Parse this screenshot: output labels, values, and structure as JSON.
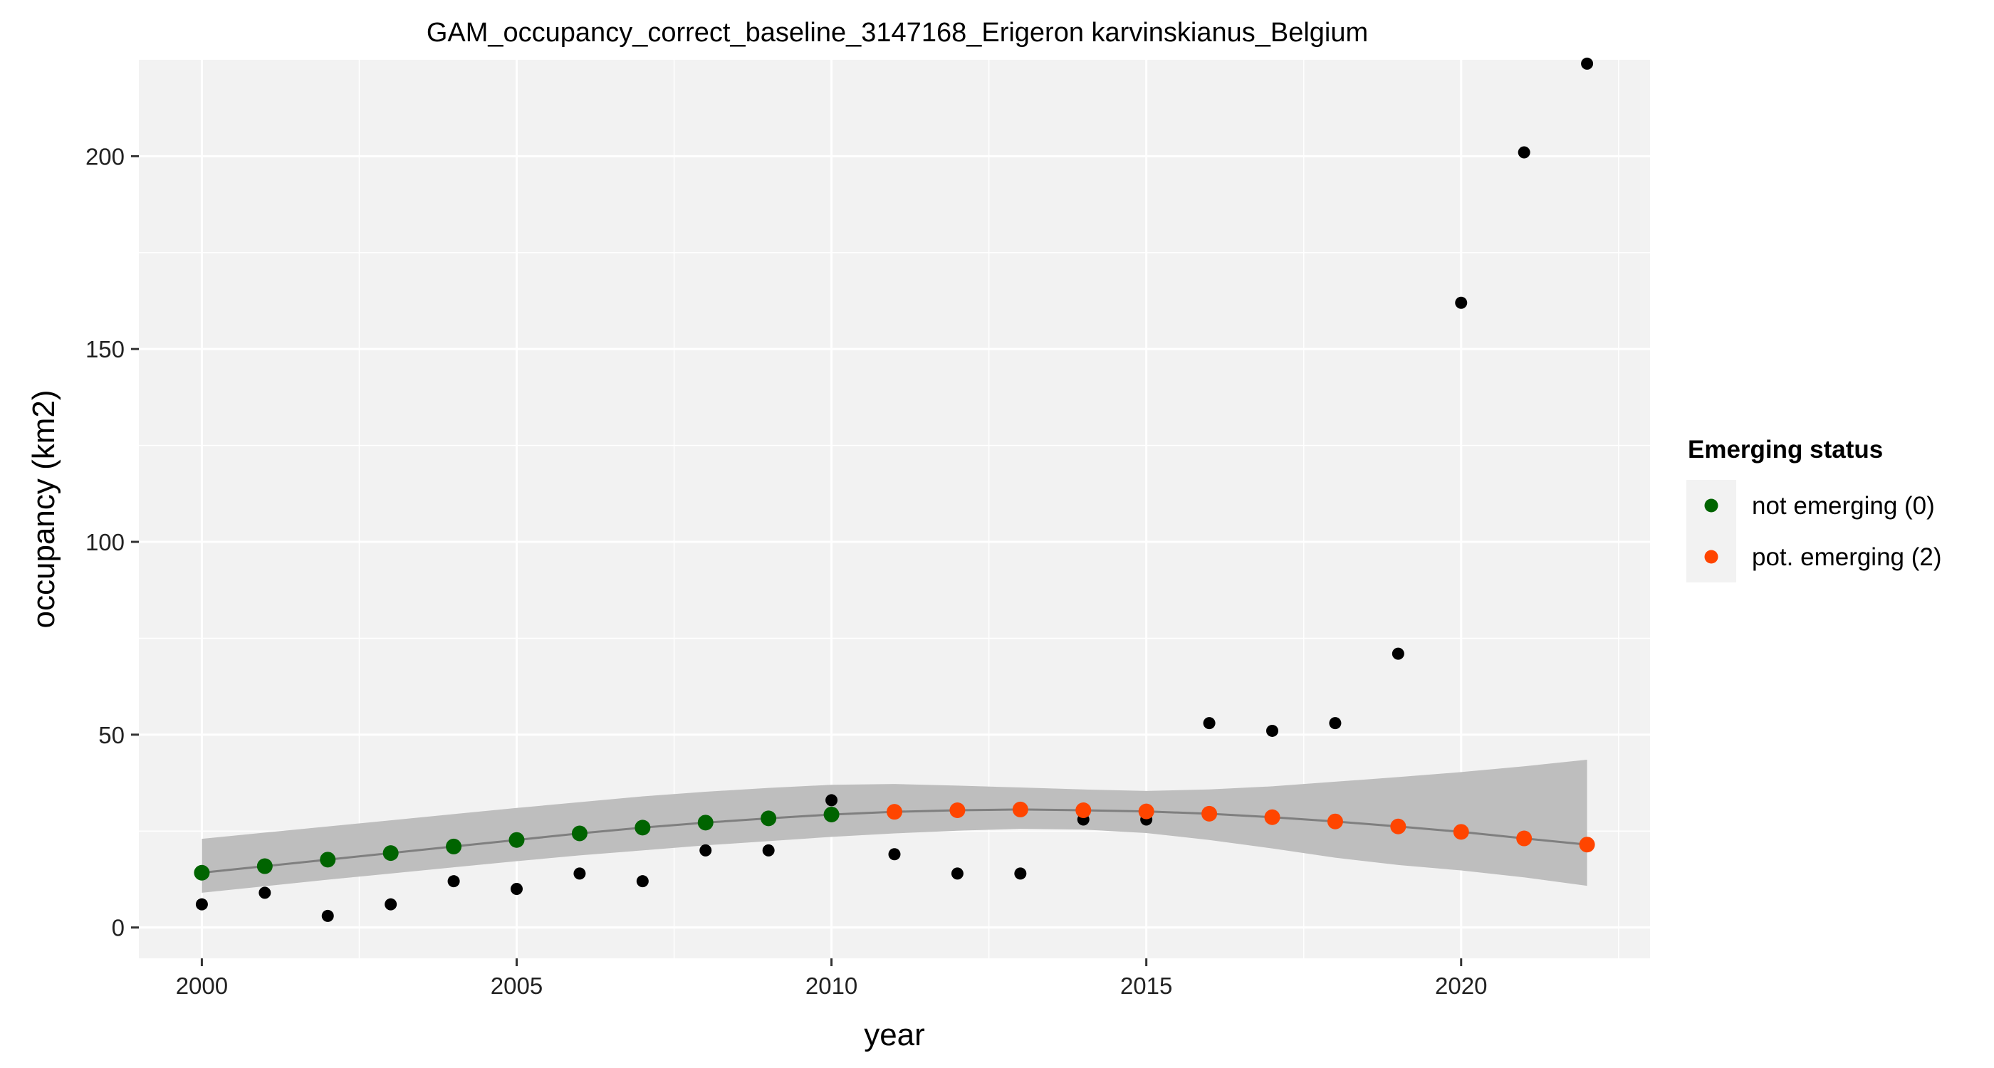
{
  "chart_data": {
    "type": "scatter",
    "title": "GAM_occupancy_correct_baseline_3147168_Erigeron karvinskianus_Belgium",
    "xlabel": "year",
    "ylabel": "occupancy (km2)",
    "xlim": [
      1999,
      2023
    ],
    "ylim": [
      -8,
      225
    ],
    "x_ticks": [
      2000,
      2005,
      2010,
      2015,
      2020
    ],
    "y_ticks": [
      0,
      50,
      100,
      150,
      200
    ],
    "grid": true,
    "legend_position": "right",
    "observed": {
      "color": "#000000",
      "x": [
        2000,
        2001,
        2002,
        2003,
        2004,
        2005,
        2006,
        2007,
        2008,
        2009,
        2010,
        2011,
        2012,
        2013,
        2014,
        2015,
        2016,
        2017,
        2018,
        2019,
        2020,
        2021,
        2022
      ],
      "y": [
        6,
        9,
        3,
        6,
        12,
        10,
        14,
        12,
        20,
        20,
        33,
        19,
        14,
        14,
        28,
        28,
        53,
        51,
        53,
        71,
        162,
        201,
        224
      ]
    },
    "fit": {
      "x": [
        2000,
        2001,
        2002,
        2003,
        2004,
        2005,
        2006,
        2007,
        2008,
        2009,
        2010,
        2011,
        2012,
        2013,
        2014,
        2015,
        2016,
        2017,
        2018,
        2019,
        2020,
        2021,
        2022
      ],
      "y": [
        14.2,
        15.9,
        17.6,
        19.3,
        21,
        22.7,
        24.4,
        25.9,
        27.2,
        28.3,
        29.3,
        30,
        30.4,
        30.6,
        30.4,
        30.1,
        29.5,
        28.6,
        27.5,
        26.2,
        24.8,
        23.1,
        21.5
      ],
      "lower": [
        9,
        10.7,
        12.4,
        14,
        15.6,
        17.2,
        18.7,
        20,
        21.3,
        22.4,
        23.5,
        24.4,
        25.1,
        25.6,
        25.4,
        24.5,
        22.7,
        20.5,
        18.1,
        16.2,
        14.8,
        13,
        10.8
      ],
      "upper": [
        23,
        24.6,
        26.2,
        27.8,
        29.4,
        31,
        32.5,
        34,
        35.2,
        36.2,
        37,
        37.2,
        36.8,
        36.3,
        35.8,
        35.4,
        35.8,
        36.6,
        37.8,
        39,
        40.3,
        41.8,
        43.5
      ],
      "line_color": "#7f7f7f",
      "band_color": "#bebebe"
    },
    "status": [
      0,
      0,
      0,
      0,
      0,
      0,
      0,
      0,
      0,
      0,
      0,
      1,
      1,
      1,
      1,
      1,
      1,
      1,
      1,
      1,
      1,
      1,
      1
    ],
    "legend": {
      "title": "Emerging status",
      "entries": [
        {
          "label": "not emerging (0)",
          "color": "#006400"
        },
        {
          "label": "pot. emerging (2)",
          "color": "#FF4500"
        }
      ]
    }
  }
}
